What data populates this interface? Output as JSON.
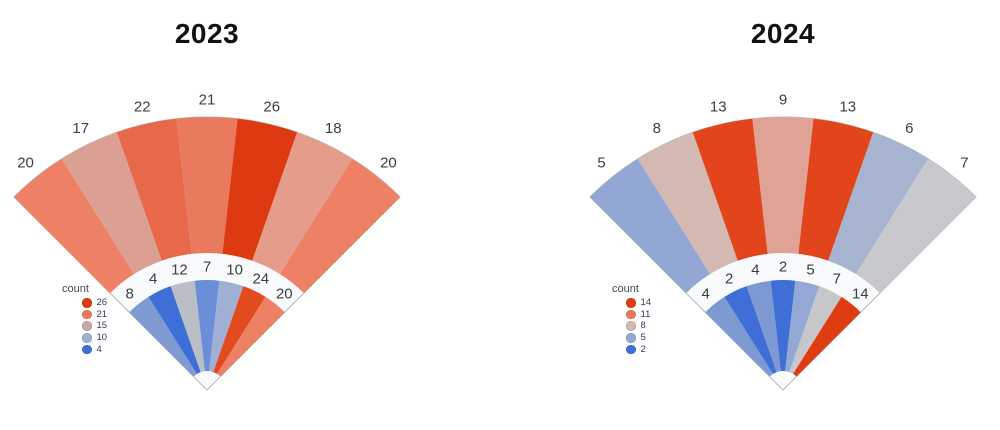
{
  "page": {
    "background": "#ffffff"
  },
  "chart_data": [
    {
      "type": "pie",
      "subtype": "two-ring-polar-fan",
      "title": "2023",
      "fan_span_degrees": 90,
      "segments_per_ring": 7,
      "color_encoding": "count mapped on diverging blue-gray-red scale, domain 4 to 26",
      "outer_ring": {
        "values": [
          20,
          17,
          22,
          21,
          26,
          18,
          20
        ],
        "colors": [
          "#ee8165",
          "#dca092",
          "#e7694a",
          "#e97a5e",
          "#dd3a12",
          "#e59c8a",
          "#ee8165"
        ]
      },
      "inner_ring": {
        "values": [
          8,
          4,
          12,
          7,
          10,
          24,
          20
        ],
        "colors": [
          "#7e9ad0",
          "#3d6fd6",
          "#b9bec7",
          "#6a8ed8",
          "#9fb0d4",
          "#e24a20",
          "#ee8165"
        ]
      },
      "legend": {
        "title": "count",
        "items": [
          {
            "label": "26",
            "color": "#dd3a12"
          },
          {
            "label": "21",
            "color": "#e8795c"
          },
          {
            "label": "15",
            "color": "#c7a8a2"
          },
          {
            "label": "10",
            "color": "#9fb0d4"
          },
          {
            "label": "4",
            "color": "#3d6fd6"
          }
        ]
      }
    },
    {
      "type": "pie",
      "subtype": "two-ring-polar-fan",
      "title": "2024",
      "fan_span_degrees": 90,
      "segments_per_ring": 7,
      "color_encoding": "count mapped on diverging blue-gray-red scale, domain 2 to 14",
      "outer_ring": {
        "values": [
          5,
          8,
          13,
          9,
          13,
          6,
          7
        ],
        "colors": [
          "#92a7d4",
          "#d3b9b2",
          "#e2441b",
          "#dfa294",
          "#e2441b",
          "#a7b4cf",
          "#c8c9cc"
        ]
      },
      "inner_ring": {
        "values": [
          4,
          2,
          4,
          2,
          5,
          7,
          14
        ],
        "colors": [
          "#7d99d2",
          "#3f6fd6",
          "#7d99d2",
          "#3f6fd6",
          "#93a8d4",
          "#c5c7ca",
          "#e03c12"
        ]
      },
      "legend": {
        "title": "count",
        "items": [
          {
            "label": "14",
            "color": "#e03c12"
          },
          {
            "label": "11",
            "color": "#e8795c"
          },
          {
            "label": "8",
            "color": "#d3b9b2"
          },
          {
            "label": "5",
            "color": "#93a8d4"
          },
          {
            "label": "2",
            "color": "#3f6fd6"
          }
        ]
      }
    }
  ]
}
